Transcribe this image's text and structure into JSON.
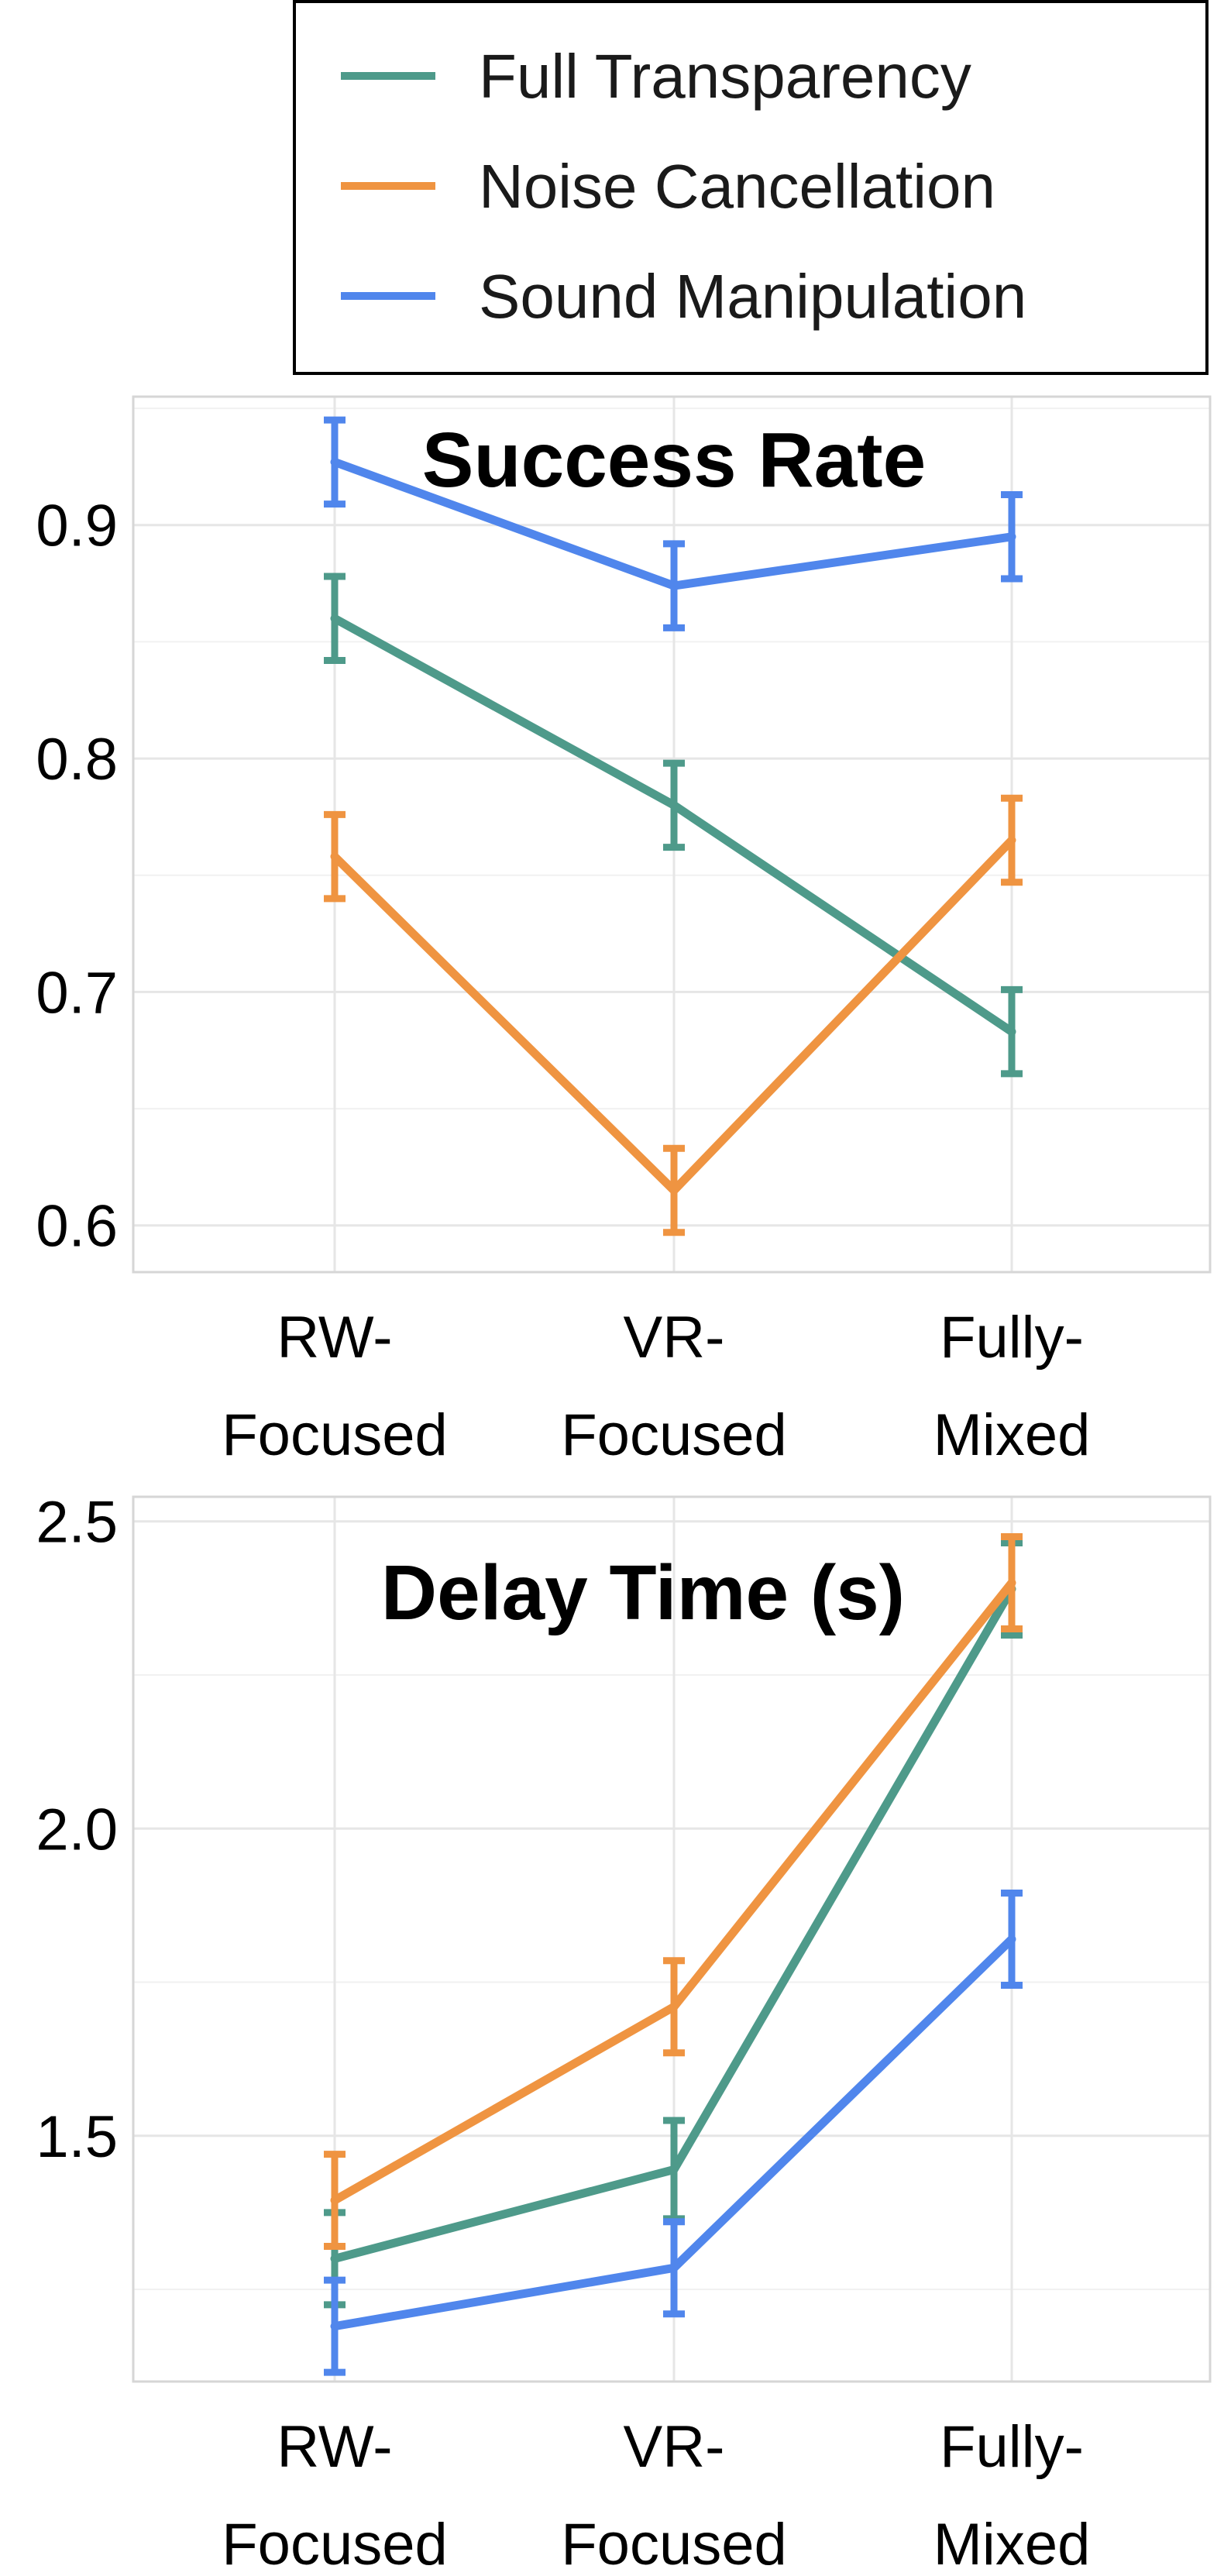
{
  "chart_data": [
    {
      "type": "line",
      "title": "Success Rate",
      "xlabel": "",
      "ylabel": "",
      "categories": [
        "RW-Focused",
        "VR-Focused",
        "Fully-Mixed"
      ],
      "x_tick_labels": [
        [
          "RW-",
          "Focused"
        ],
        [
          "VR-",
          "Focused"
        ],
        [
          "Fully-",
          "Mixed"
        ]
      ],
      "ylim": [
        0.58,
        0.955
      ],
      "y_ticks": [
        0.6,
        0.7,
        0.8,
        0.9
      ],
      "y_tick_labels": [
        "0.6",
        "0.7",
        "0.8",
        "0.9"
      ],
      "grid": true,
      "error_bars": true,
      "series": [
        {
          "name": "Full Transparency",
          "color": "#4e9a8a",
          "values": [
            0.86,
            0.78,
            0.683
          ],
          "err": [
            0.018,
            0.018,
            0.018
          ]
        },
        {
          "name": "Noise Cancellation",
          "color": "#ef9441",
          "values": [
            0.758,
            0.615,
            0.765
          ],
          "err": [
            0.018,
            0.018,
            0.018
          ]
        },
        {
          "name": "Sound Manipulation",
          "color": "#5086ec",
          "values": [
            0.927,
            0.874,
            0.895
          ],
          "err": [
            0.018,
            0.018,
            0.018
          ]
        }
      ]
    },
    {
      "type": "line",
      "title": "Delay Time (s)",
      "xlabel": "",
      "ylabel": "",
      "categories": [
        "RW-Focused",
        "VR-Focused",
        "Fully-Mixed"
      ],
      "x_tick_labels": [
        [
          "RW-",
          "Focused"
        ],
        [
          "VR-",
          "Focused"
        ],
        [
          "Fully-",
          "Mixed"
        ]
      ],
      "ylim": [
        1.1,
        2.54
      ],
      "y_ticks": [
        1.5,
        2.0,
        2.5
      ],
      "y_tick_labels": [
        "1.5",
        "2.0",
        "2.5"
      ],
      "grid": true,
      "error_bars": true,
      "series": [
        {
          "name": "Full Transparency",
          "color": "#4e9a8a",
          "values": [
            1.3,
            1.445,
            2.39
          ],
          "err": [
            0.075,
            0.08,
            0.075
          ]
        },
        {
          "name": "Noise Cancellation",
          "color": "#ef9441",
          "values": [
            1.395,
            1.71,
            2.4
          ],
          "err": [
            0.075,
            0.075,
            0.075
          ]
        },
        {
          "name": "Sound Manipulation",
          "color": "#5086ec",
          "values": [
            1.19,
            1.285,
            1.82
          ],
          "err": [
            0.075,
            0.075,
            0.075
          ]
        }
      ]
    }
  ],
  "legend": {
    "placement": "top-right",
    "entries": [
      {
        "label": "Full Transparency",
        "color": "#4e9a8a"
      },
      {
        "label": "Noise Cancellation",
        "color": "#ef9441"
      },
      {
        "label": "Sound Manipulation",
        "color": "#5086ec"
      }
    ]
  }
}
